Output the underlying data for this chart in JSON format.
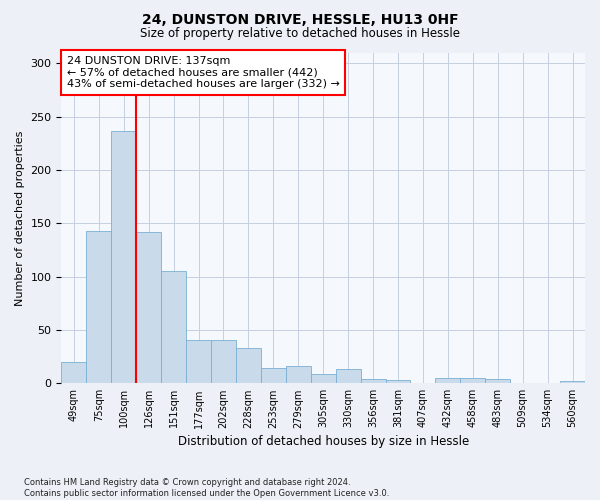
{
  "title1": "24, DUNSTON DRIVE, HESSLE, HU13 0HF",
  "title2": "Size of property relative to detached houses in Hessle",
  "xlabel": "Distribution of detached houses by size in Hessle",
  "ylabel": "Number of detached properties",
  "categories": [
    "49sqm",
    "75sqm",
    "100sqm",
    "126sqm",
    "151sqm",
    "177sqm",
    "202sqm",
    "228sqm",
    "253sqm",
    "279sqm",
    "305sqm",
    "330sqm",
    "356sqm",
    "381sqm",
    "407sqm",
    "432sqm",
    "458sqm",
    "483sqm",
    "509sqm",
    "534sqm",
    "560sqm"
  ],
  "values": [
    20,
    143,
    236,
    142,
    105,
    41,
    41,
    33,
    14,
    16,
    9,
    13,
    4,
    3,
    0,
    5,
    5,
    4,
    0,
    0,
    2
  ],
  "bar_color": "#c9daea",
  "bar_edge_color": "#7aafd4",
  "red_line_index": 3,
  "annotation_text": "24 DUNSTON DRIVE: 137sqm\n← 57% of detached houses are smaller (442)\n43% of semi-detached houses are larger (332) →",
  "annotation_box_color": "white",
  "annotation_edge_color": "red",
  "red_line_color": "red",
  "footnote": "Contains HM Land Registry data © Crown copyright and database right 2024.\nContains public sector information licensed under the Open Government Licence v3.0.",
  "ylim": [
    0,
    310
  ],
  "yticks": [
    0,
    50,
    100,
    150,
    200,
    250,
    300
  ],
  "bg_color": "#edf1f7",
  "plot_bg_color": "#f5f8fc",
  "grid_color": "#c5cfe0"
}
